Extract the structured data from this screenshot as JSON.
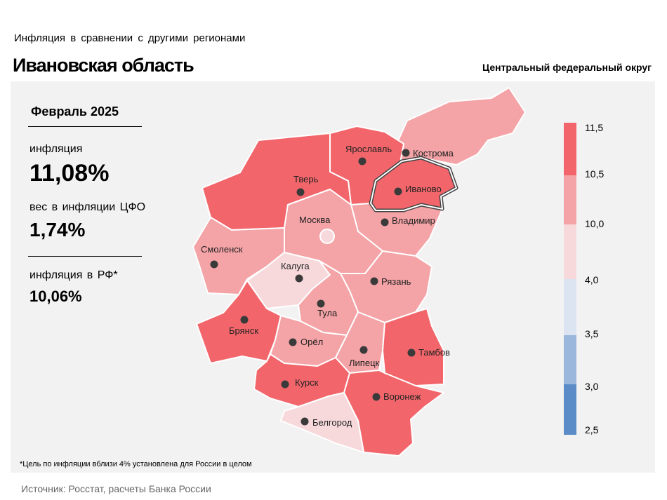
{
  "header": {
    "subtitle": "Инфляция  в сравнении  с другими  регионами",
    "title": "Ивановская область",
    "district": "Центральный федеральный округ"
  },
  "info": {
    "period": "Февраль 2025",
    "inflation_label": "инфляция",
    "inflation_value": "11,08%",
    "weight_label": "вес в инфляции  ЦФО",
    "weight_value": "1,74%",
    "rf_label": "инфляция  в РФ*",
    "rf_value": "10,06%"
  },
  "legend": {
    "ticks": [
      "11,5",
      "10,5",
      "10,0",
      "4,0",
      "3,5",
      "3,0",
      "2,5"
    ],
    "colors": [
      "#f2666b",
      "#f4a3a6",
      "#f7d9dc",
      "#dce4f2",
      "#9bb7dc",
      "#5b8cc8"
    ]
  },
  "map": {
    "highlighted": "Иваново",
    "regions": [
      {
        "name": "Кострома",
        "color": "#f4a3a6"
      },
      {
        "name": "Ярославль",
        "color": "#f2666b"
      },
      {
        "name": "Тверь",
        "color": "#f2666b"
      },
      {
        "name": "Иваново",
        "color": "#f2666b"
      },
      {
        "name": "Владимир",
        "color": "#f4a3a6"
      },
      {
        "name": "Москва",
        "color": "#f4a3a6"
      },
      {
        "name": "Смоленск",
        "color": "#f4a3a6"
      },
      {
        "name": "Калуга",
        "color": "#f7d9dc"
      },
      {
        "name": "Рязань",
        "color": "#f4a3a6"
      },
      {
        "name": "Тула",
        "color": "#f4a3a6"
      },
      {
        "name": "Брянск",
        "color": "#f2666b"
      },
      {
        "name": "Орёл",
        "color": "#f4a3a6"
      },
      {
        "name": "Липецк",
        "color": "#f4a3a6"
      },
      {
        "name": "Тамбов",
        "color": "#f2666b"
      },
      {
        "name": "Курск",
        "color": "#f2666b"
      },
      {
        "name": "Воронеж",
        "color": "#f2666b"
      },
      {
        "name": "Белгород",
        "color": "#f7d9dc"
      }
    ]
  },
  "footnote": "*Цель по инфляции вблизи 4% установлена для России в целом",
  "source": "Источник: Росстат, расчеты Банка России"
}
